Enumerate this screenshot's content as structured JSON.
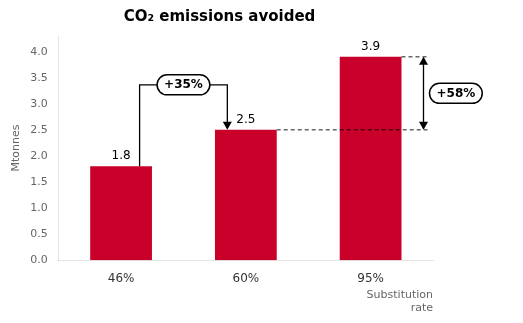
{
  "chart_data": {
    "type": "bar",
    "title": "CO₂ emissions avoided",
    "xlabel": "Substitution\nrate",
    "ylabel": "Mtonnes",
    "categories": [
      "46%",
      "60%",
      "95%"
    ],
    "values": [
      1.8,
      2.5,
      3.9
    ],
    "color": "#c8002a",
    "ylim": [
      0,
      4.3
    ],
    "yticks": [
      {
        "value": 0,
        "label": "0.0"
      },
      0.5,
      {
        "value": 1,
        "label": "1.0"
      },
      1.5,
      {
        "value": 2,
        "label": "2.0"
      },
      2.5,
      {
        "value": 3,
        "label": "3.0"
      },
      3.5,
      {
        "value": 4,
        "label": "4.0"
      }
    ],
    "grid": false,
    "data_labels": true,
    "annotations": [
      {
        "text": "+35%",
        "from": "46%",
        "to": "60%"
      },
      {
        "text": "+58%",
        "from": "60%",
        "to": "95%"
      }
    ]
  }
}
